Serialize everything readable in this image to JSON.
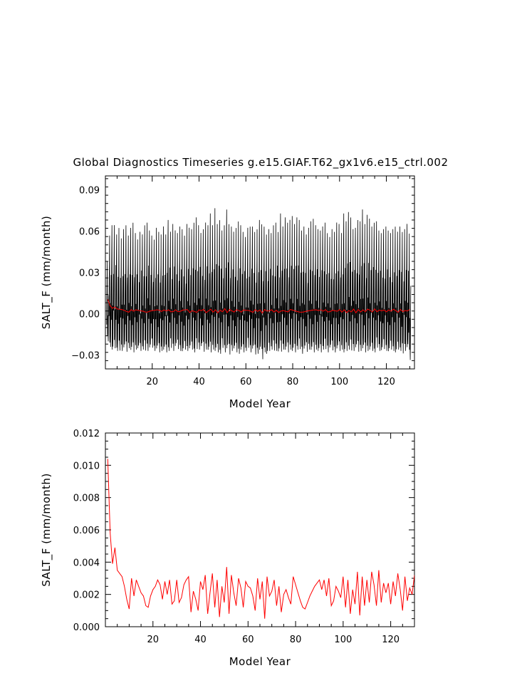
{
  "title": "Global Diagnostics Timeseries g.e15.GIAF.T62_gx1v6.e15_ctrl.002",
  "chart_data": [
    {
      "type": "line",
      "xlabel": "Model Year",
      "ylabel": "SALT_F (mm/month)",
      "xlim": [
        0,
        132
      ],
      "ylim": [
        -0.04,
        0.1
      ],
      "xticks": [
        20,
        40,
        60,
        80,
        100,
        120
      ],
      "xtick_labels": [
        "20",
        "40",
        "60",
        "80",
        "100",
        "120"
      ],
      "yticks": [
        -0.03,
        0.0,
        0.03,
        0.06,
        0.09
      ],
      "ytick_labels": [
        "−0.03",
        "0.00",
        "0.03",
        "0.06",
        "0.09"
      ],
      "series": [
        {
          "color": "#000000",
          "kind": "monthly",
          "annual_cycle_note": "approx. peak +0.06 to +0.08 and trough about -0.025 to -0.03 each year",
          "annual_peaks": [
            0.041,
            0.061,
            0.069,
            0.069,
            0.062,
            0.067,
            0.059,
            0.066,
            0.069,
            0.061,
            0.067,
            0.071,
            0.063,
            0.058,
            0.064,
            0.062,
            0.069,
            0.071,
            0.065,
            0.061,
            0.058,
            0.067,
            0.064,
            0.062,
            0.068,
            0.062,
            0.073,
            0.064,
            0.07,
            0.065,
            0.063,
            0.068,
            0.066,
            0.061,
            0.07,
            0.067,
            0.066,
            0.071,
            0.075,
            0.069,
            0.063,
            0.066,
            0.071,
            0.069,
            0.078,
            0.069,
            0.082,
            0.07,
            0.073,
            0.065,
            0.069,
            0.081,
            0.07,
            0.068,
            0.064,
            0.067,
            0.072,
            0.069,
            0.064,
            0.06,
            0.067,
            0.068,
            0.068,
            0.064,
            0.066,
            0.073,
            0.07,
            0.068,
            0.062,
            0.066,
            0.063,
            0.069,
            0.071,
            0.064,
            0.078,
            0.068,
            0.075,
            0.071,
            0.073,
            0.076,
            0.07,
            0.075,
            0.073,
            0.065,
            0.068,
            0.062,
            0.067,
            0.072,
            0.074,
            0.069,
            0.066,
            0.065,
            0.068,
            0.071,
            0.063,
            0.06,
            0.066,
            0.064,
            0.071,
            0.07,
            0.063,
            0.078,
            0.072,
            0.079,
            0.075,
            0.066,
            0.067,
            0.073,
            0.072,
            0.081,
            0.07,
            0.077,
            0.074,
            0.068,
            0.071,
            0.072,
            0.065,
            0.063,
            0.066,
            0.068,
            0.065,
            0.063,
            0.066,
            0.068,
            0.064,
            0.068,
            0.064,
            0.066,
            0.07,
            0.063
          ],
          "annual_troughs": [
            -0.02,
            -0.024,
            -0.026,
            -0.025,
            -0.027,
            -0.028,
            -0.027,
            -0.026,
            -0.028,
            -0.025,
            -0.027,
            -0.028,
            -0.026,
            -0.025,
            -0.027,
            -0.026,
            -0.028,
            -0.027,
            -0.026,
            -0.025,
            -0.027,
            -0.026,
            -0.028,
            -0.027,
            -0.026,
            -0.028,
            -0.027,
            -0.026,
            -0.027,
            -0.025,
            -0.026,
            -0.027,
            -0.028,
            -0.026,
            -0.027,
            -0.025,
            -0.026,
            -0.028,
            -0.027,
            -0.026,
            -0.025,
            -0.028,
            -0.026,
            -0.027,
            -0.028,
            -0.026,
            -0.027,
            -0.028,
            -0.029,
            -0.026,
            -0.028,
            -0.027,
            -0.03,
            -0.027,
            -0.026,
            -0.028,
            -0.029,
            -0.026,
            -0.028,
            -0.027,
            -0.026,
            -0.028,
            -0.027,
            -0.03,
            -0.029,
            -0.027,
            -0.033,
            -0.028,
            -0.029,
            -0.027,
            -0.026,
            -0.028,
            -0.027,
            -0.029,
            -0.028,
            -0.026,
            -0.027,
            -0.028,
            -0.026,
            -0.027,
            -0.028,
            -0.026,
            -0.027,
            -0.029,
            -0.027,
            -0.028,
            -0.026,
            -0.027,
            -0.028,
            -0.026,
            -0.027,
            -0.028,
            -0.026,
            -0.027,
            -0.028,
            -0.026,
            -0.027,
            -0.028,
            -0.026,
            -0.027,
            -0.026,
            -0.028,
            -0.027,
            -0.026,
            -0.028,
            -0.027,
            -0.026,
            -0.028,
            -0.027,
            -0.026,
            -0.028,
            -0.027,
            -0.026,
            -0.027,
            -0.028,
            -0.026,
            -0.027,
            -0.028,
            -0.026,
            -0.027,
            -0.028,
            -0.026,
            -0.027,
            -0.028,
            -0.026,
            -0.027,
            -0.03,
            -0.027,
            -0.026,
            -0.034
          ]
        },
        {
          "color": "#ff0000",
          "kind": "annual-mean",
          "x": [
            1,
            2,
            3,
            4,
            5,
            6,
            7,
            8,
            9,
            10,
            11,
            12,
            13,
            14,
            15,
            16,
            17,
            18,
            19,
            20,
            21,
            22,
            23,
            24,
            25,
            26,
            27,
            28,
            29,
            30,
            31,
            32,
            33,
            34,
            35,
            36,
            37,
            38,
            39,
            40,
            41,
            42,
            43,
            44,
            45,
            46,
            47,
            48,
            49,
            50,
            51,
            52,
            53,
            54,
            55,
            56,
            57,
            58,
            59,
            60,
            61,
            62,
            63,
            64,
            65,
            66,
            67,
            68,
            69,
            70,
            71,
            72,
            73,
            74,
            75,
            76,
            77,
            78,
            79,
            80,
            81,
            82,
            83,
            84,
            85,
            86,
            87,
            88,
            89,
            90,
            91,
            92,
            93,
            94,
            95,
            96,
            97,
            98,
            99,
            100,
            101,
            102,
            103,
            104,
            105,
            106,
            107,
            108,
            109,
            110,
            111,
            112,
            113,
            114,
            115,
            116,
            117,
            118,
            119,
            120,
            121,
            122,
            123,
            124,
            125,
            126,
            127,
            128,
            129,
            130
          ],
          "values": [
            0.0104,
            0.0058,
            0.0039,
            0.0049,
            0.0035,
            0.0033,
            0.0031,
            0.0025,
            0.0017,
            0.0011,
            0.003,
            0.0019,
            0.0029,
            0.0025,
            0.0021,
            0.0019,
            0.0013,
            0.0012,
            0.0019,
            0.0023,
            0.0025,
            0.0029,
            0.0026,
            0.0017,
            0.0028,
            0.002,
            0.0029,
            0.0014,
            0.0016,
            0.0029,
            0.0015,
            0.0018,
            0.0026,
            0.0029,
            0.0031,
            0.0009,
            0.0022,
            0.0017,
            0.001,
            0.0028,
            0.0023,
            0.0032,
            0.0008,
            0.0021,
            0.0033,
            0.0012,
            0.0029,
            0.0006,
            0.0025,
            0.0015,
            0.0037,
            0.0008,
            0.0032,
            0.0021,
            0.0013,
            0.003,
            0.0024,
            0.0012,
            0.0028,
            0.0025,
            0.0024,
            0.0019,
            0.001,
            0.003,
            0.0017,
            0.0028,
            0.0005,
            0.0031,
            0.0019,
            0.0022,
            0.0029,
            0.0013,
            0.0025,
            0.0009,
            0.002,
            0.0023,
            0.0018,
            0.0014,
            0.0031,
            0.0026,
            0.0021,
            0.0016,
            0.0012,
            0.0011,
            0.0015,
            0.0019,
            0.0022,
            0.0025,
            0.0027,
            0.0029,
            0.0023,
            0.0029,
            0.0019,
            0.003,
            0.0013,
            0.0016,
            0.0025,
            0.0022,
            0.0018,
            0.0031,
            0.0012,
            0.0029,
            0.0008,
            0.0023,
            0.0014,
            0.0034,
            0.0007,
            0.0031,
            0.0013,
            0.0029,
            0.0015,
            0.0034,
            0.0026,
            0.0013,
            0.0035,
            0.0015,
            0.0027,
            0.0021,
            0.0027,
            0.0014,
            0.0028,
            0.0019,
            0.0033,
            0.0023,
            0.001,
            0.0031,
            0.0016,
            0.0024,
            0.002,
            0.0032
          ]
        }
      ]
    },
    {
      "type": "line",
      "xlabel": "Model Year",
      "ylabel": "SALT_F (mm/month)",
      "xlim": [
        0,
        130
      ],
      "ylim": [
        0.0,
        0.012
      ],
      "xticks": [
        20,
        40,
        60,
        80,
        100,
        120
      ],
      "xtick_labels": [
        "20",
        "40",
        "60",
        "80",
        "100",
        "120"
      ],
      "yticks": [
        0.0,
        0.002,
        0.004,
        0.006,
        0.008,
        0.01,
        0.012
      ],
      "ytick_labels": [
        "0.000",
        "0.002",
        "0.004",
        "0.006",
        "0.008",
        "0.010",
        "0.012"
      ],
      "series": [
        {
          "color": "#ff0000",
          "x": [
            1,
            2,
            3,
            4,
            5,
            6,
            7,
            8,
            9,
            10,
            11,
            12,
            13,
            14,
            15,
            16,
            17,
            18,
            19,
            20,
            21,
            22,
            23,
            24,
            25,
            26,
            27,
            28,
            29,
            30,
            31,
            32,
            33,
            34,
            35,
            36,
            37,
            38,
            39,
            40,
            41,
            42,
            43,
            44,
            45,
            46,
            47,
            48,
            49,
            50,
            51,
            52,
            53,
            54,
            55,
            56,
            57,
            58,
            59,
            60,
            61,
            62,
            63,
            64,
            65,
            66,
            67,
            68,
            69,
            70,
            71,
            72,
            73,
            74,
            75,
            76,
            77,
            78,
            79,
            80,
            81,
            82,
            83,
            84,
            85,
            86,
            87,
            88,
            89,
            90,
            91,
            92,
            93,
            94,
            95,
            96,
            97,
            98,
            99,
            100,
            101,
            102,
            103,
            104,
            105,
            106,
            107,
            108,
            109,
            110,
            111,
            112,
            113,
            114,
            115,
            116,
            117,
            118,
            119,
            120,
            121,
            122,
            123,
            124,
            125,
            126,
            127,
            128,
            129,
            130
          ],
          "values": [
            0.0104,
            0.0058,
            0.0039,
            0.0049,
            0.0035,
            0.0033,
            0.0031,
            0.0025,
            0.0017,
            0.0011,
            0.003,
            0.0019,
            0.0029,
            0.0025,
            0.0021,
            0.0019,
            0.0013,
            0.0012,
            0.0019,
            0.0023,
            0.0025,
            0.0029,
            0.0026,
            0.0017,
            0.0028,
            0.002,
            0.0029,
            0.0014,
            0.0016,
            0.0029,
            0.0015,
            0.0018,
            0.0026,
            0.0029,
            0.0031,
            0.0009,
            0.0022,
            0.0017,
            0.001,
            0.0028,
            0.0023,
            0.0032,
            0.0008,
            0.0021,
            0.0033,
            0.0012,
            0.0029,
            0.0006,
            0.0025,
            0.0015,
            0.0037,
            0.0008,
            0.0032,
            0.0021,
            0.0013,
            0.003,
            0.0024,
            0.0012,
            0.0028,
            0.0025,
            0.0024,
            0.0019,
            0.001,
            0.003,
            0.0017,
            0.0028,
            0.0005,
            0.0031,
            0.0019,
            0.0022,
            0.0029,
            0.0013,
            0.0025,
            0.0009,
            0.002,
            0.0023,
            0.0018,
            0.0014,
            0.0031,
            0.0026,
            0.0021,
            0.0016,
            0.0012,
            0.0011,
            0.0015,
            0.0019,
            0.0022,
            0.0025,
            0.0027,
            0.0029,
            0.0023,
            0.0029,
            0.0019,
            0.003,
            0.0013,
            0.0016,
            0.0025,
            0.0022,
            0.0018,
            0.0031,
            0.0012,
            0.0029,
            0.0008,
            0.0023,
            0.0014,
            0.0034,
            0.0007,
            0.0031,
            0.0013,
            0.0029,
            0.0015,
            0.0034,
            0.0026,
            0.0013,
            0.0035,
            0.0015,
            0.0027,
            0.0021,
            0.0027,
            0.0014,
            0.0028,
            0.0019,
            0.0033,
            0.0023,
            0.001,
            0.0031,
            0.0016,
            0.0024,
            0.002,
            0.0032
          ]
        }
      ]
    }
  ]
}
